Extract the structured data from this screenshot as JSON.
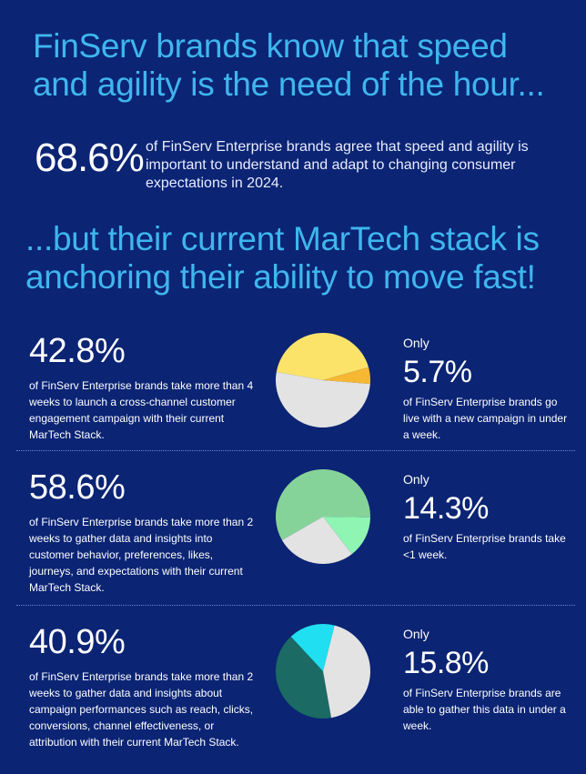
{
  "headline_1": "FinServ brands know that speed and agility is the need of the hour...",
  "hero": {
    "stat": "68.6%",
    "text": "of FinServ Enterprise brands agree that speed and agility is important to understand and adapt to changing consumer expectations in 2024."
  },
  "headline_2": "...but their current MarTech stack is anchoring their ability to move fast!",
  "rows": [
    {
      "left_stat": "42.8%",
      "left_text": "of FinServ Enterprise brands take more than 4 weeks to launch a cross-channel customer engagement campaign with their current MarTech Stack.",
      "only_label": "Only",
      "right_stat": "5.7%",
      "right_text": "of FinServ Enterprise brands go live with a new campaign in under a week."
    },
    {
      "left_stat": "58.6%",
      "left_text": "of FinServ Enterprise brands take more than 2 weeks to gather data and insights into customer behavior, preferences, likes, journeys, and expectations with their current MarTech Stack.",
      "only_label": "Only",
      "right_stat": "14.3%",
      "right_text": "of FinServ Enterprise brands take <1 week."
    },
    {
      "left_stat": "40.9%",
      "left_text": "of FinServ Enterprise brands take more than 2 weeks to gather data and insights about campaign performances such as reach, clicks, conversions, channel effectiveness, or attribution with their current MarTech Stack.",
      "only_label": "Only",
      "right_stat": "15.8%",
      "right_text": "of FinServ Enterprise brands are able to gather this data in under a week."
    }
  ],
  "colors": {
    "background": "#0b2474",
    "headline": "#3fb6ee",
    "remainder": "#e3e3e3"
  },
  "chart_data": [
    {
      "type": "pie",
      "slices": [
        {
          "value": 42.8,
          "color": "#fbe36a"
        },
        {
          "value": 5.7,
          "color": "#f6b733"
        },
        {
          "value": 51.5,
          "color": "#e3e3e3"
        }
      ]
    },
    {
      "type": "pie",
      "slices": [
        {
          "value": 58.6,
          "color": "#86d39a"
        },
        {
          "value": 14.3,
          "color": "#8ff5b3"
        },
        {
          "value": 27.1,
          "color": "#e3e3e3"
        }
      ]
    },
    {
      "type": "pie",
      "slices": [
        {
          "value": 40.9,
          "color": "#1b6a63"
        },
        {
          "value": 15.8,
          "color": "#1fdff0"
        },
        {
          "value": 43.3,
          "color": "#e3e3e3"
        }
      ]
    }
  ]
}
